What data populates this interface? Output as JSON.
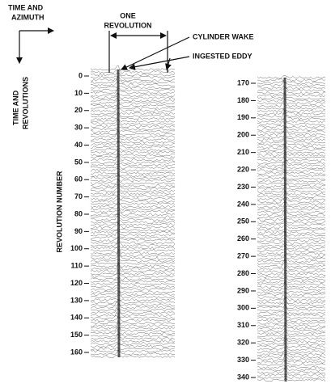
{
  "time_azimuth": [
    "TIME AND",
    "AZIMUTH"
  ],
  "time_revolutions": [
    "TIME AND",
    "REVOLUTIONS"
  ],
  "one_revolution": [
    "ONE",
    "REVOLUTION"
  ],
  "cylinder_wake": "CYLINDER WAKE",
  "ingested_eddy": "INGESTED EDDY",
  "axis_label": "REVOLUTION NUMBER",
  "panels": [
    {
      "ticks": [
        0,
        10,
        20,
        30,
        40,
        50,
        60,
        70,
        80,
        90,
        100,
        110,
        120,
        130,
        140,
        150,
        160
      ]
    },
    {
      "ticks": [
        170,
        180,
        190,
        200,
        210,
        220,
        230,
        240,
        250,
        260,
        270,
        280,
        290,
        300,
        310,
        320,
        330,
        340
      ]
    }
  ]
}
